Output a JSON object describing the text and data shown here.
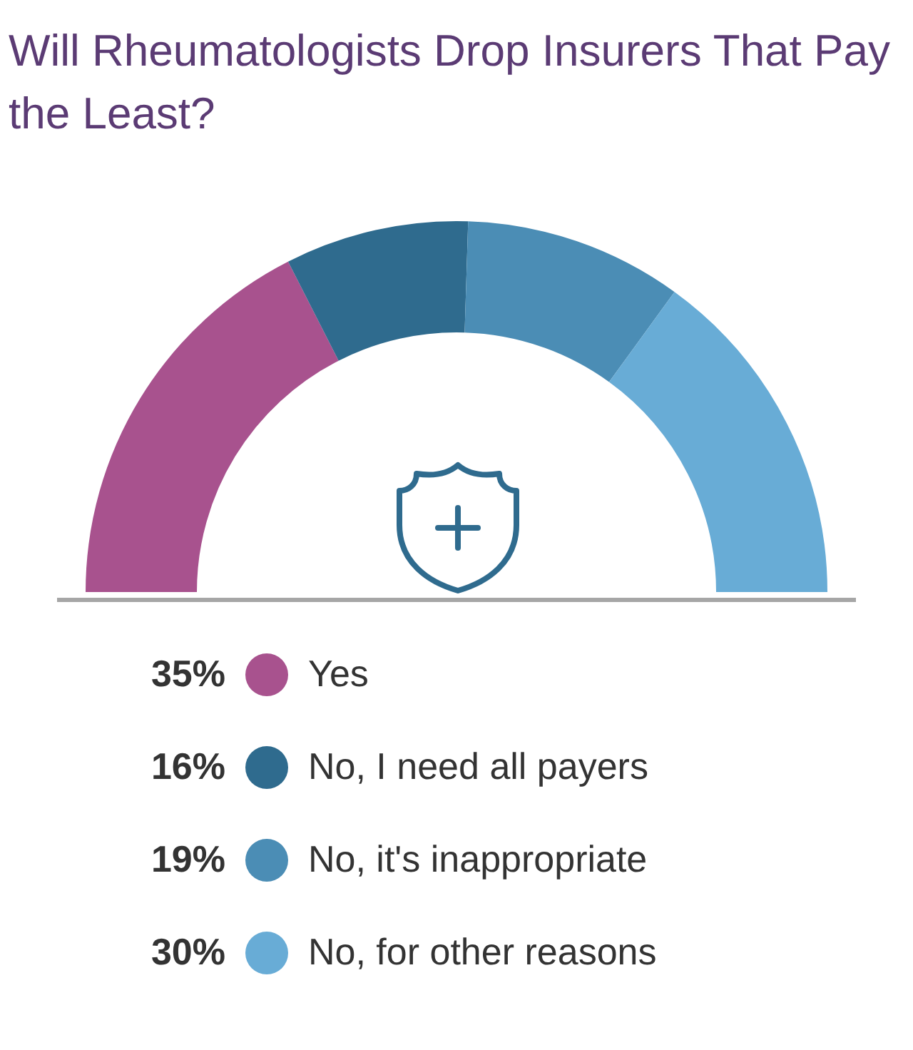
{
  "chart_data": {
    "type": "donut",
    "title": "Will Rheumatologists Drop Insurers That Pay the Least?",
    "categories": [
      "Yes",
      "No, I need all payers",
      "No, it's inappropriate",
      "No, for other reasons"
    ],
    "values": [
      35,
      16,
      19,
      30
    ],
    "value_labels": [
      "35%",
      "16%",
      "19%",
      "30%"
    ],
    "colors": [
      "#a8528e",
      "#2f6b8e",
      "#4b8db5",
      "#68acd6"
    ],
    "legend": "bottom"
  }
}
